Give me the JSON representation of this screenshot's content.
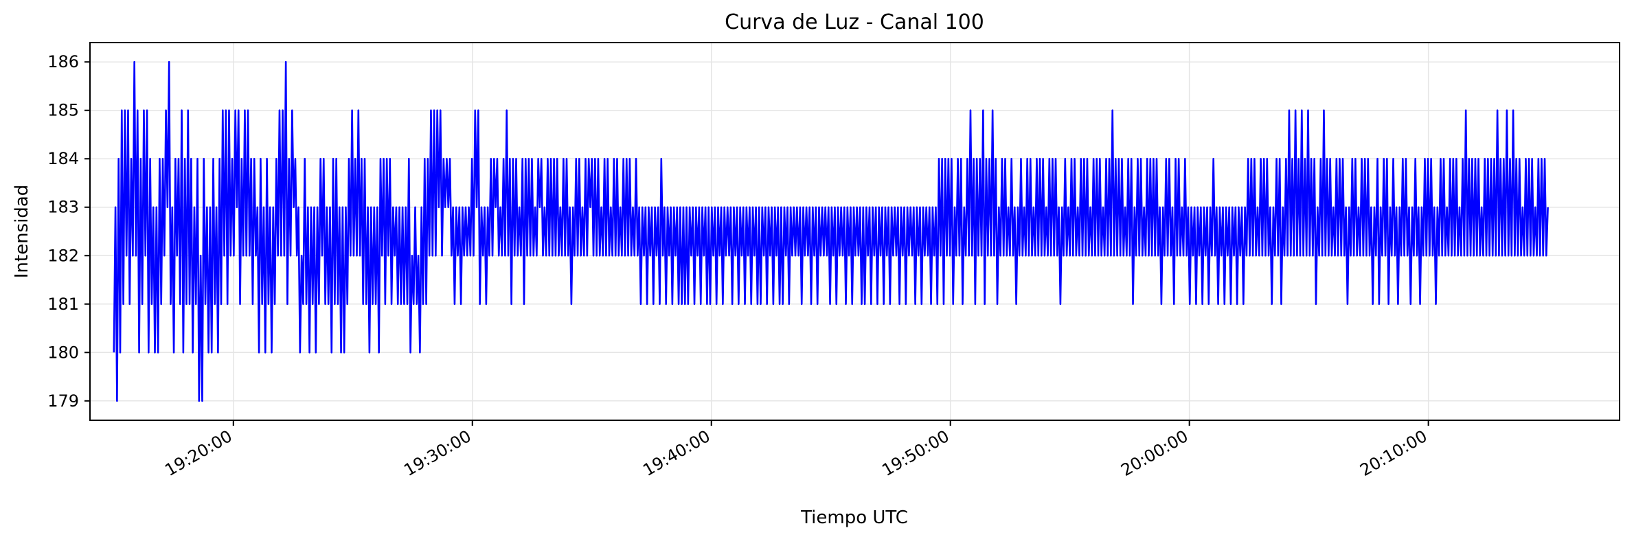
{
  "chart_data": {
    "type": "line",
    "title": "Curva de Luz - Canal 100",
    "xlabel": "Tiempo UTC",
    "ylabel": "Intensidad",
    "x_range": [
      "19:14:00",
      "20:18:00"
    ],
    "ylim": [
      178.6,
      186.4
    ],
    "yticks": [
      179,
      180,
      181,
      182,
      183,
      184,
      185,
      186
    ],
    "xticks": [
      "19:20:00",
      "19:30:00",
      "19:40:00",
      "19:50:00",
      "20:00:00",
      "20:10:00"
    ],
    "grid": true,
    "line_color": "#0000ff",
    "series": [
      {
        "name": "",
        "x_start": "19:15:00",
        "x_end": "20:15:00",
        "sample_interval": "1 s",
        "values": [
          180,
          183,
          179,
          184,
          180,
          185,
          181,
          185,
          182,
          185,
          181,
          184,
          182,
          186,
          182,
          185,
          180,
          184,
          181,
          185,
          182,
          185,
          180,
          184,
          181,
          183,
          180,
          183,
          180,
          184,
          181,
          184,
          182,
          185,
          183,
          186,
          181,
          183,
          180,
          184,
          182,
          184,
          181,
          185,
          180,
          184,
          181,
          185,
          181,
          184,
          180,
          183,
          181,
          184,
          179,
          182,
          179,
          184,
          181,
          183,
          180,
          183,
          180,
          184,
          181,
          183,
          180,
          184,
          181,
          185,
          182,
          185,
          181,
          185,
          182,
          184,
          182,
          185,
          183,
          185,
          181,
          184,
          182,
          185,
          182,
          185,
          182,
          184,
          181,
          184,
          182,
          183,
          180,
          184,
          181,
          183,
          180,
          184,
          181,
          183,
          180,
          183,
          181,
          184,
          182,
          185,
          182,
          185,
          182,
          186,
          181,
          184,
          182,
          185,
          183,
          184,
          182,
          183,
          180,
          182,
          181,
          184,
          181,
          183,
          180,
          183,
          181,
          183,
          180,
          183,
          181,
          184,
          182,
          184,
          181,
          183,
          181,
          183,
          180,
          184,
          181,
          184,
          181,
          183,
          180,
          183,
          180,
          183,
          181,
          184,
          182,
          185,
          182,
          184,
          182,
          185,
          182,
          184,
          181,
          184,
          181,
          183,
          180,
          183,
          181,
          183,
          181,
          183,
          180,
          184,
          182,
          184,
          181,
          184,
          182,
          184,
          181,
          183,
          182,
          183,
          181,
          183,
          181,
          183,
          181,
          183,
          181,
          184,
          180,
          182,
          181,
          183,
          181,
          182,
          180,
          183,
          181,
          184,
          181,
          184,
          182,
          185,
          182,
          185,
          182,
          185,
          183,
          185,
          182,
          184,
          183,
          184,
          183,
          184,
          182,
          183,
          181,
          183,
          182,
          183,
          181,
          183,
          182,
          183,
          182,
          183,
          182,
          184,
          182,
          185,
          183,
          185,
          181,
          183,
          182,
          183,
          181,
          183,
          182,
          184,
          182,
          184,
          183,
          184,
          182,
          183,
          182,
          184,
          182,
          185,
          182,
          184,
          181,
          184,
          182,
          184,
          182,
          183,
          182,
          184,
          181,
          184,
          182,
          184,
          182,
          184,
          182,
          183,
          182,
          184,
          183,
          184,
          182,
          183,
          182,
          184,
          182,
          184,
          182,
          184,
          182,
          184,
          182,
          183,
          182,
          184,
          182,
          184,
          182,
          183,
          181,
          183,
          182,
          184,
          182,
          184,
          182,
          183,
          182,
          184,
          182,
          184,
          183,
          184,
          182,
          184,
          182,
          184,
          182,
          183,
          182,
          184,
          182,
          184,
          182,
          183,
          182,
          184,
          182,
          184,
          182,
          183,
          182,
          184,
          182,
          184,
          182,
          184,
          182,
          183,
          182,
          184,
          182,
          183,
          181,
          183,
          182,
          183,
          181,
          183,
          182,
          183,
          181,
          183,
          182,
          183,
          181,
          184,
          182,
          183,
          181,
          183,
          182,
          183,
          181,
          183,
          182,
          183,
          181,
          183,
          181,
          183,
          181,
          183,
          181,
          183,
          182,
          183,
          181,
          183,
          182,
          183,
          181,
          183,
          182,
          183,
          181,
          183,
          181,
          183,
          182,
          183,
          181,
          183,
          182,
          183,
          181,
          183,
          182,
          183,
          182,
          183,
          181,
          183,
          182,
          183,
          181,
          183,
          182,
          183,
          181,
          183,
          182,
          183,
          181,
          183,
          182,
          183,
          181,
          183,
          181,
          183,
          182,
          183,
          181,
          183,
          182,
          183,
          181,
          183,
          182,
          183,
          181,
          183,
          181,
          183,
          182,
          183,
          181,
          183,
          182,
          183,
          182,
          183,
          182,
          183,
          181,
          183,
          182,
          183,
          182,
          183,
          181,
          183,
          182,
          183,
          181,
          183,
          182,
          183,
          182,
          183,
          182,
          183,
          181,
          183,
          182,
          183,
          181,
          183,
          182,
          183,
          182,
          183,
          181,
          183,
          182,
          183,
          181,
          183,
          182,
          183,
          182,
          183,
          181,
          183,
          181,
          183,
          182,
          183,
          181,
          183,
          182,
          183,
          181,
          183,
          182,
          183,
          181,
          183,
          182,
          183,
          181,
          183,
          182,
          183,
          182,
          183,
          181,
          183,
          182,
          183,
          181,
          183,
          182,
          183,
          182,
          183,
          181,
          183,
          182,
          183,
          181,
          183,
          182,
          183,
          182,
          183,
          181,
          183,
          182,
          183,
          181,
          184,
          182,
          184,
          181,
          184,
          182,
          184,
          182,
          184,
          181,
          183,
          182,
          184,
          182,
          184,
          181,
          183,
          182,
          184,
          182,
          185,
          182,
          184,
          181,
          184,
          182,
          184,
          182,
          185,
          181,
          184,
          182,
          184,
          182,
          185,
          182,
          184,
          181,
          183,
          182,
          184,
          182,
          184,
          182,
          183,
          182,
          184,
          182,
          183,
          181,
          183,
          182,
          184,
          182,
          183,
          182,
          184,
          182,
          184,
          182,
          183,
          182,
          184,
          182,
          184,
          182,
          184,
          182,
          183,
          182,
          184,
          182,
          184,
          182,
          184,
          182,
          183,
          181,
          183,
          182,
          184,
          182,
          183,
          182,
          184,
          182,
          184,
          182,
          183,
          182,
          184,
          182,
          184,
          182,
          184,
          182,
          183,
          182,
          184,
          182,
          184,
          182,
          184,
          182,
          183,
          182,
          184,
          182,
          184,
          182,
          185,
          182,
          184,
          182,
          184,
          182,
          184,
          182,
          183,
          182,
          184,
          182,
          184,
          181,
          183,
          182,
          184,
          182,
          184,
          182,
          183,
          182,
          184,
          182,
          184,
          182,
          184,
          182,
          184,
          182,
          183,
          181,
          183,
          182,
          184,
          182,
          184,
          182,
          183,
          181,
          184,
          182,
          184,
          182,
          183,
          182,
          184,
          182,
          183,
          181,
          183,
          182,
          183,
          181,
          183,
          182,
          183,
          181,
          183,
          182,
          183,
          181,
          183,
          182,
          184,
          182,
          183,
          181,
          183,
          182,
          183,
          181,
          183,
          182,
          183,
          181,
          183,
          182,
          183,
          181,
          183,
          182,
          183,
          181,
          183,
          182,
          184,
          182,
          184,
          182,
          184,
          182,
          183,
          182,
          184,
          182,
          184,
          182,
          184,
          182,
          183,
          181,
          183,
          182,
          184,
          182,
          184,
          181,
          183,
          182,
          184,
          182,
          185,
          182,
          184,
          182,
          185,
          182,
          184,
          182,
          185,
          182,
          184,
          182,
          185,
          182,
          184,
          182,
          184,
          181,
          183,
          182,
          184,
          182,
          185,
          182,
          184,
          182,
          184,
          182,
          183,
          182,
          184,
          182,
          184,
          182,
          184,
          182,
          183,
          181,
          183,
          182,
          184,
          182,
          184,
          182,
          183,
          182,
          184,
          182,
          184,
          182,
          184,
          182,
          183,
          181,
          183,
          182,
          184,
          181,
          183,
          182,
          184,
          182,
          184,
          181,
          183,
          182,
          184,
          182,
          183,
          181,
          183,
          182,
          184,
          182,
          184,
          182,
          183,
          181,
          183,
          182,
          184,
          182,
          183,
          181,
          183,
          182,
          184,
          182,
          184,
          182,
          184,
          182,
          183,
          181,
          183,
          182,
          184,
          182,
          184,
          182,
          183,
          182,
          184,
          182,
          184,
          182,
          184,
          182,
          183,
          182,
          184,
          182,
          185,
          182,
          184,
          182,
          184,
          182,
          184,
          182,
          184,
          182,
          183,
          182,
          184,
          182,
          184,
          182,
          184,
          182,
          184,
          182,
          185,
          182,
          184,
          182,
          184,
          182,
          185,
          182,
          184,
          182,
          185,
          182,
          184,
          182,
          184,
          182,
          183,
          182,
          184,
          182,
          184,
          182,
          184,
          182,
          183,
          182,
          184,
          182,
          184,
          182,
          184,
          182,
          183
        ]
      }
    ],
    "notes_visible_range": "values oscillate 179–186"
  }
}
